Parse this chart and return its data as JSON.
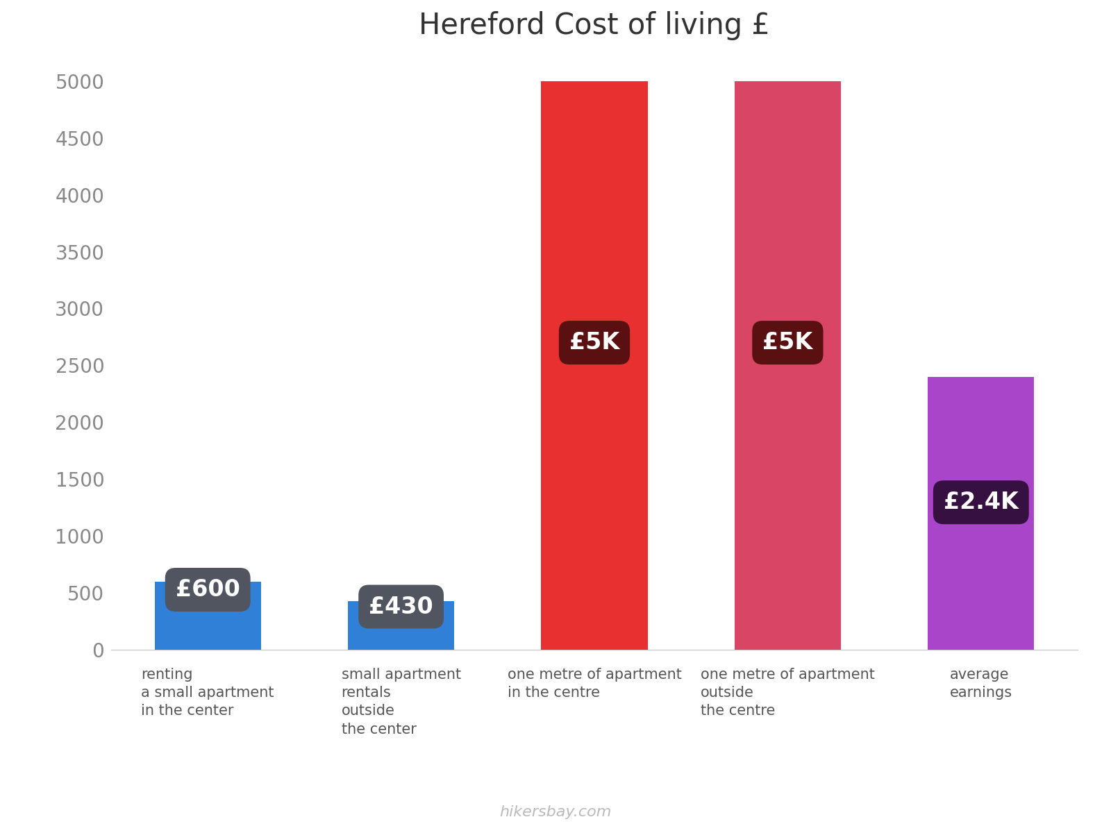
{
  "title": "Hereford Cost of living £",
  "title_fontsize": 30,
  "categories": [
    "renting\na small apartment\nin the center",
    "small apartment\nrentals\noutside\nthe center",
    "one metre of apartment\nin the centre",
    "one metre of apartment\noutside\nthe centre",
    "average\nearnings"
  ],
  "values": [
    600,
    430,
    5000,
    5000,
    2400
  ],
  "bar_colors": [
    "#3080d8",
    "#3080d8",
    "#e83030",
    "#d94565",
    "#a845c8"
  ],
  "label_texts": [
    "£600",
    "£430",
    "£5K",
    "£5K",
    "£2.4K"
  ],
  "label_bg_colors": [
    "#505560",
    "#505560",
    "#5a1010",
    "#5a1010",
    "#351040"
  ],
  "ylim": [
    0,
    5200
  ],
  "yticks": [
    0,
    500,
    1000,
    1500,
    2000,
    2500,
    3000,
    3500,
    4000,
    4500,
    5000
  ],
  "background_color": "#ffffff",
  "watermark": "hikersbay.com",
  "label_fontsize": 24,
  "tick_fontsize": 20,
  "xtick_fontsize": 15,
  "bar_width": 0.55
}
